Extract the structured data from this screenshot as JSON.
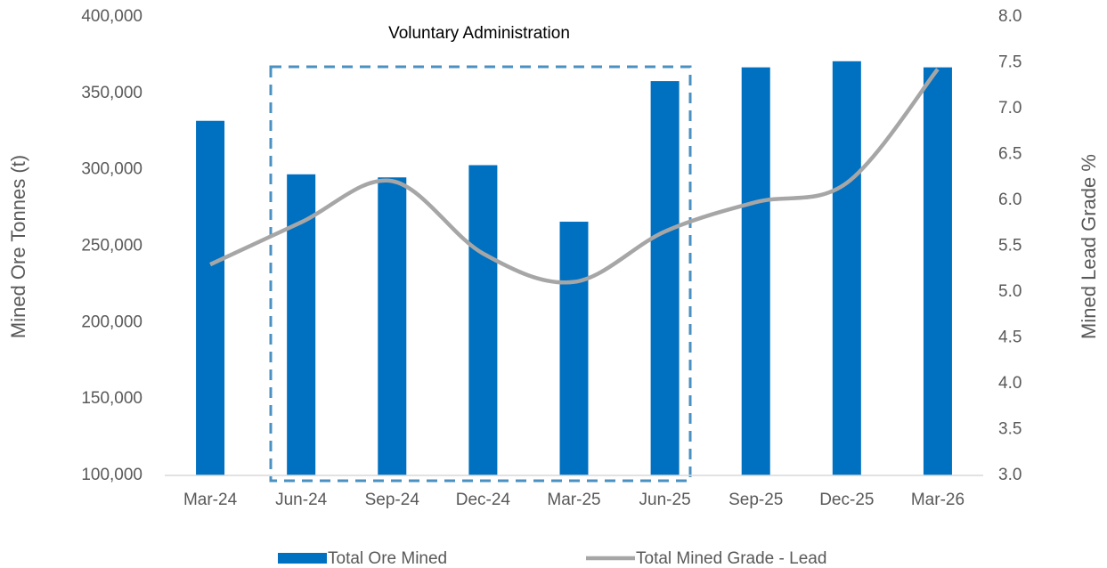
{
  "chart_data": {
    "type": "bar_line",
    "annotation": "Voluntary Administration",
    "ylabel": "Mined Ore Tonnes (t)",
    "y2label": "Mined Lead Grade %",
    "categories": [
      "Mar-24",
      "Jun-24",
      "Sep-24",
      "Dec-24",
      "Mar-25",
      "Jun-25",
      "Sep-25",
      "Dec-25",
      "Mar-26"
    ],
    "series": [
      {
        "name": "Total Ore Mined",
        "type": "bar",
        "color": "#0070c0",
        "values": [
          332000,
          297000,
          295000,
          303000,
          266000,
          358000,
          367000,
          371000,
          367000
        ]
      },
      {
        "name": "Total Mined Grade - Lead",
        "type": "line",
        "axis": "y2",
        "color": "#a6a6a6",
        "values": [
          5.3,
          5.76,
          6.21,
          5.42,
          5.11,
          5.66,
          5.98,
          6.19,
          7.43
        ]
      }
    ],
    "ylim": [
      100000,
      400000
    ],
    "yticks": [
      {
        "value": 100000,
        "label": "100,000"
      },
      {
        "value": 150000,
        "label": "150,000"
      },
      {
        "value": 200000,
        "label": "200,000"
      },
      {
        "value": 250000,
        "label": "250,000"
      },
      {
        "value": 300000,
        "label": "300,000"
      },
      {
        "value": 350000,
        "label": "350,000"
      },
      {
        "value": 400000,
        "label": "400,000"
      }
    ],
    "y2lim": [
      3,
      8
    ],
    "y2ticks": [
      {
        "value": 3,
        "label": "3.0"
      },
      {
        "value": 3.5,
        "label": "3.5"
      },
      {
        "value": 4,
        "label": "4.0"
      },
      {
        "value": 4.5,
        "label": "4.5"
      },
      {
        "value": 5,
        "label": "5.0"
      },
      {
        "value": 5.5,
        "label": "5.5"
      },
      {
        "value": 6,
        "label": "6.0"
      },
      {
        "value": 6.5,
        "label": "6.5"
      },
      {
        "value": 7,
        "label": "7.0"
      },
      {
        "value": 7.5,
        "label": "7.5"
      },
      {
        "value": 8,
        "label": "8.0"
      }
    ]
  }
}
